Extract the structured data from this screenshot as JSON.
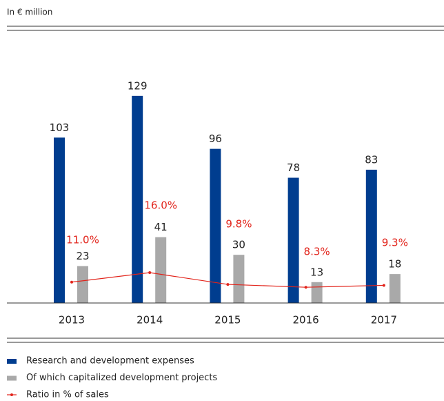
{
  "chart_data": {
    "type": "bar",
    "subtitle": "In € million",
    "categories": [
      "2013",
      "2014",
      "2015",
      "2016",
      "2017"
    ],
    "ylim": [
      0,
      150
    ],
    "y2lim": [
      0,
      127
    ],
    "series": [
      {
        "name": "Research and development expenses",
        "color": "#003d8f",
        "values": [
          103,
          129,
          96,
          78,
          83
        ]
      },
      {
        "name": "Of which capitalized development projects",
        "color": "#a9a9a9",
        "values": [
          23,
          41,
          30,
          13,
          18
        ]
      },
      {
        "name": "Ratio in % of sales",
        "color": "#e2231a",
        "type": "line",
        "axis": "y2",
        "values": [
          11.0,
          16.0,
          9.8,
          8.3,
          9.3
        ],
        "value_labels": [
          "11.0%",
          "16.0%",
          "9.8%",
          "8.3%",
          "9.3%"
        ]
      }
    ]
  }
}
